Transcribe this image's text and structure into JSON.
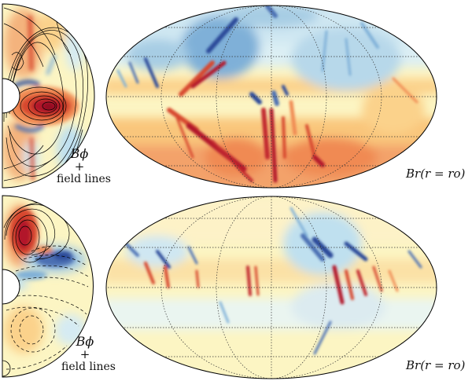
{
  "panels": [
    {
      "meridional": {
        "quantity_label": "Bϕ",
        "plus_label": "+",
        "field_lines_label": "field lines"
      },
      "surface": {
        "label": "Br(r = ro)"
      }
    },
    {
      "meridional": {
        "quantity_label": "Bϕ",
        "plus_label": "+",
        "field_lines_label": "field lines"
      },
      "surface": {
        "label": "Br(r = ro)"
      }
    }
  ],
  "colormap": {
    "negative_strong": "#2c4a99",
    "negative": "#7fb0d8",
    "negative_weak": "#cfe7f2",
    "neutral": "#fcf5c3",
    "positive_weak": "#fbd28b",
    "positive": "#f08a52",
    "positive_strong": "#b2182b"
  }
}
